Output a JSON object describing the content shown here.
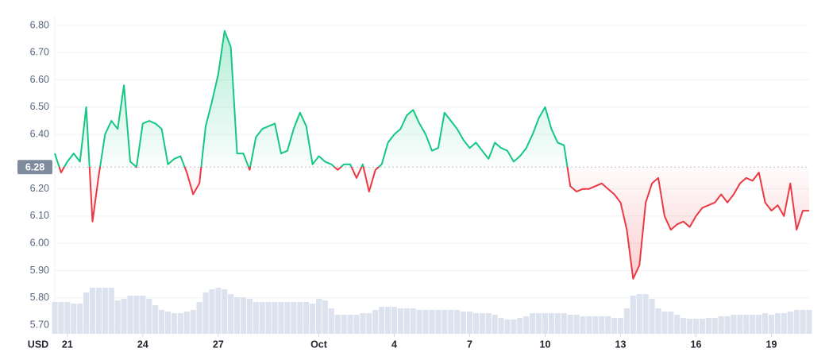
{
  "chart_data": {
    "type": "line",
    "ylabel": "USD",
    "baseline": 6.28,
    "xlim": [
      -0.5,
      29.5
    ],
    "xticks": [
      {
        "value": 0,
        "label": "21"
      },
      {
        "value": 3,
        "label": "24"
      },
      {
        "value": 6,
        "label": "27"
      },
      {
        "value": 10,
        "label": "Oct"
      },
      {
        "value": 13,
        "label": "4"
      },
      {
        "value": 16,
        "label": "7"
      },
      {
        "value": 19,
        "label": "10"
      },
      {
        "value": 22,
        "label": "13"
      },
      {
        "value": 25,
        "label": "16"
      },
      {
        "value": 28,
        "label": "19"
      }
    ],
    "ylim": [
      5.668,
      6.835
    ],
    "yticks": [
      {
        "value": 5.7,
        "label": "5.70"
      },
      {
        "value": 5.8,
        "label": "5.80"
      },
      {
        "value": 5.9,
        "label": "5.90"
      },
      {
        "value": 6.0,
        "label": "6.00"
      },
      {
        "value": 6.1,
        "label": "6.10"
      },
      {
        "value": 6.2,
        "label": "6.20"
      },
      {
        "value": 6.4,
        "label": "6.40"
      },
      {
        "value": 6.5,
        "label": "6.50"
      },
      {
        "value": 6.6,
        "label": "6.60"
      },
      {
        "value": 6.7,
        "label": "6.70"
      },
      {
        "value": 6.8,
        "label": "6.80"
      }
    ],
    "y2lim": [
      0,
      100
    ],
    "grid": true,
    "x": [
      -0.5,
      -0.25,
      0,
      0.25,
      0.5,
      0.75,
      1,
      1.25,
      1.5,
      1.75,
      2,
      2.25,
      2.5,
      2.75,
      3,
      3.25,
      3.5,
      3.75,
      4,
      4.25,
      4.5,
      4.75,
      5,
      5.25,
      5.5,
      5.75,
      6,
      6.25,
      6.5,
      6.75,
      7,
      7.25,
      7.5,
      7.75,
      8,
      8.25,
      8.5,
      8.75,
      9,
      9.25,
      9.5,
      9.75,
      10,
      10.25,
      10.5,
      10.75,
      11,
      11.25,
      11.5,
      11.75,
      12,
      12.25,
      12.5,
      12.75,
      13,
      13.25,
      13.5,
      13.75,
      14,
      14.25,
      14.5,
      14.75,
      15,
      15.25,
      15.5,
      15.75,
      16,
      16.25,
      16.5,
      16.75,
      17,
      17.25,
      17.5,
      17.75,
      18,
      18.25,
      18.5,
      18.75,
      19,
      19.25,
      19.5,
      19.75,
      20,
      20.25,
      20.5,
      20.75,
      21,
      21.25,
      21.5,
      21.75,
      22,
      22.25,
      22.5,
      22.75,
      23,
      23.25,
      23.5,
      23.75,
      24,
      24.25,
      24.5,
      24.75,
      25,
      25.25,
      25.5,
      25.75,
      26,
      26.25,
      26.5,
      26.75,
      27,
      27.25,
      27.5,
      27.75,
      28,
      28.25,
      28.5,
      28.75,
      29,
      29.25,
      29.5
    ],
    "series": [
      {
        "color_up": "#16c784",
        "color_down": "#ea3943",
        "values": [
          6.33,
          6.26,
          6.3,
          6.33,
          6.3,
          6.5,
          6.08,
          6.25,
          6.4,
          6.45,
          6.42,
          6.58,
          6.3,
          6.28,
          6.44,
          6.45,
          6.44,
          6.42,
          6.29,
          6.31,
          6.32,
          6.26,
          6.18,
          6.22,
          6.43,
          6.52,
          6.62,
          6.78,
          6.72,
          6.33,
          6.33,
          6.27,
          6.39,
          6.42,
          6.43,
          6.44,
          6.33,
          6.34,
          6.42,
          6.48,
          6.43,
          6.29,
          6.32,
          6.3,
          6.29,
          6.27,
          6.29,
          6.29,
          6.24,
          6.29,
          6.19,
          6.27,
          6.29,
          6.37,
          6.4,
          6.42,
          6.47,
          6.49,
          6.44,
          6.4,
          6.34,
          6.35,
          6.48,
          6.45,
          6.42,
          6.38,
          6.35,
          6.37,
          6.34,
          6.31,
          6.37,
          6.35,
          6.34,
          6.3,
          6.32,
          6.35,
          6.4,
          6.46,
          6.5,
          6.42,
          6.37,
          6.36,
          6.21,
          6.19,
          6.2,
          6.2,
          6.21,
          6.22,
          6.2,
          6.18,
          6.15,
          6.05,
          5.87,
          5.92,
          6.15,
          6.22,
          6.24,
          6.1,
          6.05,
          6.07,
          6.08,
          6.06,
          6.1,
          6.13,
          6.14,
          6.15,
          6.18,
          6.15,
          6.18,
          6.22,
          6.24,
          6.23,
          6.26,
          6.15,
          6.12,
          6.14,
          6.1,
          6.22,
          6.05,
          6.12,
          6.12
        ]
      },
      {
        "axis": "y2",
        "color": "#dde3ee",
        "values": [
          10,
          10,
          10,
          9.5,
          9.5,
          13,
          14.5,
          14.5,
          14.5,
          14.5,
          10.5,
          11,
          12,
          12,
          12,
          11,
          9,
          7.5,
          7,
          6.5,
          6.5,
          7,
          7.5,
          10,
          13,
          14,
          14.5,
          14,
          12.5,
          11.5,
          11.5,
          11,
          10,
          10,
          10,
          10,
          10,
          10,
          10,
          10,
          10,
          9.5,
          11,
          10.5,
          8,
          6,
          6,
          6,
          6,
          6.5,
          6.5,
          7.5,
          8.5,
          8.5,
          8.5,
          8,
          8,
          8,
          7.5,
          7.5,
          7.5,
          7.5,
          7.5,
          7.5,
          7.5,
          7,
          7,
          6.5,
          6.5,
          6.5,
          6,
          5,
          4.5,
          4.5,
          5,
          5.5,
          6.5,
          6.5,
          6.5,
          6.5,
          6.5,
          6.5,
          6,
          6,
          5.5,
          5.5,
          5.5,
          5.5,
          5.5,
          5,
          5,
          8,
          12,
          12.5,
          12.5,
          11,
          8,
          7,
          7,
          6,
          5,
          4.75,
          4.75,
          4.75,
          5,
          5,
          5.5,
          5.5,
          6,
          6,
          6,
          6,
          6,
          6.5,
          6,
          6.5,
          6.5,
          7,
          7.5,
          7.5,
          7.5
        ]
      }
    ]
  }
}
